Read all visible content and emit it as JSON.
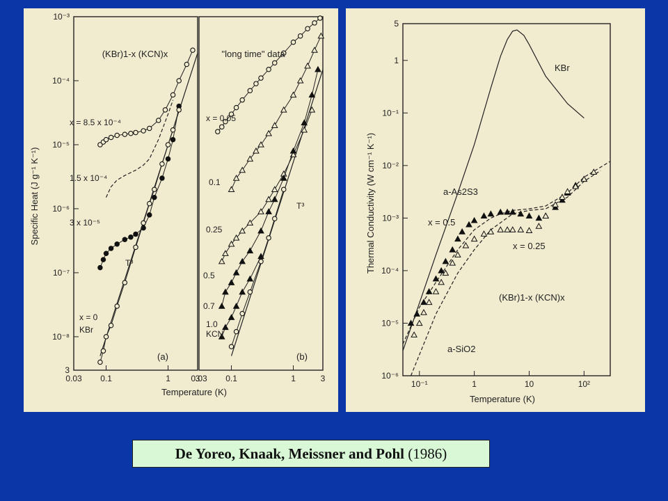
{
  "slide": {
    "caption_authors": "De Yoreo, Knaak, Meissner and Pohl",
    "caption_year": "(1986)",
    "background_color": "#0a36a8",
    "panel_color": "#f1ebcf",
    "caption_bg_color": "#d8f8d6"
  },
  "chart_data": [
    {
      "id": "a",
      "type": "scatter",
      "panel_label": "(a)",
      "title": "(KBr)1-x (KCN)x",
      "xlabel": "Temperature (K)",
      "ylabel": "Specific Heat (J g⁻¹ K⁻¹)",
      "xscale": "log",
      "yscale": "log",
      "xlim": [
        0.03,
        3
      ],
      "ylim": [
        3e-09,
        0.001
      ],
      "x_ticks": [
        "0.03",
        "0.1",
        "1",
        "3"
      ],
      "y_ticks": [
        "10⁻³",
        "10⁻⁴",
        "10⁻⁵",
        "10⁻⁶",
        "10⁻⁷",
        "10⁻⁸",
        "3"
      ],
      "series": [
        {
          "name": "x = 8.5 x 10⁻⁴",
          "marker": "open-circle",
          "x": [
            0.08,
            0.09,
            0.1,
            0.12,
            0.15,
            0.2,
            0.25,
            0.3,
            0.4,
            0.5,
            0.7,
            0.9,
            1.2,
            1.5,
            2.0,
            2.5
          ],
          "y": [
            1e-05,
            1.1e-05,
            1.2e-05,
            1.3e-05,
            1.4e-05,
            1.45e-05,
            1.5e-05,
            1.55e-05,
            1.65e-05,
            1.8e-05,
            2.4e-05,
            3.5e-05,
            6e-05,
            0.0001,
            0.00018,
            0.0003
          ]
        },
        {
          "name": "3 x 10⁻⁵",
          "marker": "filled-circle",
          "x": [
            0.08,
            0.09,
            0.1,
            0.12,
            0.15,
            0.2,
            0.25,
            0.3,
            0.4,
            0.5,
            0.6,
            0.8,
            1.0,
            1.2,
            1.5
          ],
          "y": [
            1.2e-07,
            1.6e-07,
            2e-07,
            2.4e-07,
            2.8e-07,
            3.3e-07,
            3.6e-07,
            4e-07,
            5e-07,
            8e-07,
            1.5e-06,
            3e-06,
            6e-06,
            1.2e-05,
            4e-05
          ]
        },
        {
          "name": "x = 0 KBr",
          "marker": "open-circle",
          "x": [
            0.08,
            0.09,
            0.1,
            0.12,
            0.15,
            0.2,
            0.3,
            0.4,
            0.5,
            0.6,
            0.8,
            1.0,
            1.2,
            1.5
          ],
          "y": [
            4e-09,
            6e-09,
            1e-08,
            1.5e-08,
            3e-08,
            7e-08,
            2.5e-07,
            6e-07,
            1.2e-06,
            2e-06,
            5e-06,
            1e-05,
            1.7e-05,
            3.5e-05
          ]
        }
      ],
      "curves": [
        {
          "name": "1.5 x 10⁻⁴",
          "style": "dashed",
          "x": [
            0.1,
            0.12,
            0.15,
            0.2,
            0.3,
            0.4,
            0.5,
            0.7,
            1.0,
            1.2
          ],
          "y": [
            1.5e-06,
            2.2e-06,
            2.8e-06,
            3.3e-06,
            4e-06,
            4.8e-06,
            6e-06,
            1.2e-05,
            3e-05,
            5e-05
          ]
        },
        {
          "name": "T³",
          "style": "solid",
          "x": [
            0.08,
            3
          ],
          "y": [
            5e-09,
            0.00027
          ]
        }
      ],
      "annotations": [
        "x = 8.5 x 10⁻⁴",
        "1.5 x 10⁻⁴",
        "3 x 10⁻⁵",
        "T³",
        "x = 0",
        "KBr",
        "(a)"
      ]
    },
    {
      "id": "b",
      "type": "scatter",
      "panel_label": "(b)",
      "title": "\"long time\" data",
      "xlabel": "Temperature (K)",
      "ylabel": "",
      "xscale": "log",
      "yscale": "log",
      "xlim": [
        0.03,
        3
      ],
      "ylim": [
        3e-09,
        0.001
      ],
      "x_ticks": [
        "0.03",
        "0.1",
        "1",
        "3"
      ],
      "series": [
        {
          "name": "x = 0.05",
          "marker": "open-circle",
          "x": [
            0.06,
            0.07,
            0.08,
            0.1,
            0.12,
            0.15,
            0.2,
            0.25,
            0.3,
            0.4,
            0.5,
            0.7,
            1.0,
            1.3,
            1.7,
            2.2,
            2.7
          ],
          "y": [
            1.6e-05,
            1.9e-05,
            2.3e-05,
            3e-05,
            3.8e-05,
            5e-05,
            7e-05,
            9e-05,
            0.00011,
            0.00015,
            0.00019,
            0.00027,
            0.0004,
            0.0005,
            0.00065,
            0.0008,
            0.00095
          ]
        },
        {
          "name": "0.1",
          "marker": "open-triangle",
          "x": [
            0.1,
            0.12,
            0.15,
            0.2,
            0.25,
            0.3,
            0.4,
            0.5,
            0.7,
            1.0,
            1.3,
            1.7,
            2.2,
            2.8
          ],
          "y": [
            2e-06,
            3e-06,
            4e-06,
            6e-06,
            8e-06,
            1e-05,
            1.5e-05,
            2e-05,
            3.5e-05,
            6e-05,
            0.0001,
            0.00017,
            0.0003,
            0.0005
          ]
        },
        {
          "name": "0.25",
          "marker": "open-triangle",
          "x": [
            0.07,
            0.08,
            0.1,
            0.12,
            0.15,
            0.2,
            0.3,
            0.4,
            0.5,
            0.7,
            1.0,
            1.5,
            2.0
          ],
          "y": [
            1.5e-07,
            2e-07,
            2.8e-07,
            3.5e-07,
            4.5e-07,
            6e-07,
            9e-07,
            1.4e-06,
            2e-06,
            3.5e-06,
            7e-06,
            1.7e-05,
            3.5e-05
          ]
        },
        {
          "name": "0.5",
          "marker": "filled-triangle",
          "x": [
            0.07,
            0.08,
            0.1,
            0.12,
            0.15,
            0.2,
            0.3,
            0.4,
            0.5,
            0.7,
            1.0,
            1.5,
            2.0,
            2.5
          ],
          "y": [
            3e-08,
            5e-08,
            7e-08,
            1e-07,
            1.5e-07,
            2.2e-07,
            4.5e-07,
            9e-07,
            1.4e-06,
            3e-06,
            8e-06,
            2.2e-05,
            6e-05,
            0.00015
          ]
        },
        {
          "name": "0.7",
          "marker": "filled-triangle",
          "x": [
            0.07,
            0.08,
            0.1,
            0.12,
            0.15,
            0.2,
            0.3
          ],
          "y": [
            1e-08,
            1.4e-08,
            2e-08,
            3e-08,
            5e-08,
            8e-08,
            1.8e-07
          ]
        },
        {
          "name": "1.0 KCN",
          "marker": "open-circle",
          "x": [
            0.1,
            0.12,
            0.15,
            0.2,
            0.3,
            0.4,
            0.5,
            0.7
          ],
          "y": [
            7e-09,
            1.2e-08,
            2.3e-08,
            5e-08,
            1.5e-07,
            3.5e-07,
            7e-07,
            2e-06
          ]
        }
      ],
      "curves": [
        {
          "name": "T³",
          "style": "solid",
          "x": [
            0.1,
            3
          ],
          "y": [
            5e-09,
            0.00015
          ]
        }
      ],
      "annotations": [
        "x = 0.05",
        "0.1",
        "0.25",
        "0.5",
        "0.7",
        "1.0",
        "KCN",
        "T³",
        "(b)"
      ]
    },
    {
      "id": "c",
      "type": "line",
      "title": "(KBr)1-x (KCN)x",
      "xlabel": "Temperature (K)",
      "ylabel": "Thermal Conductivity (W cm⁻¹ K⁻¹)",
      "xscale": "log",
      "yscale": "log",
      "xlim": [
        0.05,
        300
      ],
      "ylim": [
        1e-06,
        5
      ],
      "x_ticks": [
        "10⁻¹",
        "1",
        "10",
        "10²"
      ],
      "y_ticks": [
        "5",
        "1",
        "10⁻¹",
        "10⁻²",
        "10⁻³",
        "10⁻⁴",
        "10⁻⁵",
        "10⁻⁶"
      ],
      "series": [
        {
          "name": "x = 0.5",
          "marker": "filled-triangle",
          "x": [
            0.07,
            0.09,
            0.12,
            0.15,
            0.2,
            0.25,
            0.3,
            0.4,
            0.5,
            0.6,
            0.8,
            1,
            1.5,
            2,
            3,
            4,
            5,
            7,
            10,
            15,
            20,
            30,
            40,
            50,
            70,
            100
          ],
          "y": [
            1e-05,
            1.5e-05,
            2.5e-05,
            4e-05,
            7e-05,
            0.0001,
            0.00015,
            0.00025,
            0.0004,
            0.00055,
            0.00075,
            0.0009,
            0.0011,
            0.0012,
            0.0013,
            0.0013,
            0.0013,
            0.0012,
            0.0011,
            0.001,
            0.0011,
            0.0016,
            0.0022,
            0.003,
            0.0042,
            0.0055
          ]
        },
        {
          "name": "x = 0.25",
          "marker": "open-triangle",
          "x": [
            0.08,
            0.1,
            0.12,
            0.15,
            0.2,
            0.25,
            0.3,
            0.4,
            0.5,
            0.7,
            1,
            1.5,
            2,
            3,
            4,
            5,
            7,
            10,
            15,
            20,
            30,
            40,
            50,
            70,
            100,
            150
          ],
          "y": [
            6e-06,
            1e-05,
            1.6e-05,
            2.5e-05,
            4e-05,
            6e-05,
            9e-05,
            0.00014,
            0.0002,
            0.0003,
            0.0004,
            0.0005,
            0.00055,
            0.0006,
            0.0006,
            0.0006,
            0.0006,
            0.00058,
            0.0007,
            0.0011,
            0.0018,
            0.0025,
            0.0032,
            0.004,
            0.0055,
            0.0075
          ]
        }
      ],
      "curves": [
        {
          "name": "KBr",
          "style": "solid",
          "x": [
            0.05,
            0.1,
            0.2,
            0.5,
            1,
            2,
            3,
            4,
            5,
            6,
            8,
            10,
            20,
            50,
            100
          ],
          "y": [
            3e-06,
            2.4e-05,
            0.0002,
            0.003,
            0.025,
            0.3,
            1.2,
            2.5,
            3.6,
            3.8,
            3.0,
            2.0,
            0.5,
            0.15,
            0.08
          ]
        },
        {
          "name": "a-As2S3",
          "style": "dashed",
          "x": [
            0.05,
            0.1,
            0.2,
            0.5,
            1,
            2,
            3,
            5,
            10,
            20,
            50,
            100,
            300
          ],
          "y": [
            4e-06,
            2e-05,
            6e-05,
            0.00025,
            0.0006,
            0.001,
            0.0012,
            0.0014,
            0.0015,
            0.0017,
            0.003,
            0.006,
            0.012
          ]
        },
        {
          "name": "a-SiO2",
          "style": "dashed",
          "x": [
            0.07,
            0.1,
            0.2,
            0.5,
            1,
            2,
            5,
            10,
            20,
            50,
            100,
            200
          ],
          "y": [
            1e-06,
            2.5e-06,
            1.5e-05,
            9e-05,
            0.00025,
            0.0006,
            0.0012,
            0.0014,
            0.0015,
            0.0025,
            0.005,
            0.008
          ]
        }
      ],
      "annotations": [
        "KBr",
        "a-As2S3",
        "x = 0.5",
        "x = 0.25",
        "(KBr)1-x (KCN)x",
        "a-SiO2"
      ]
    }
  ]
}
